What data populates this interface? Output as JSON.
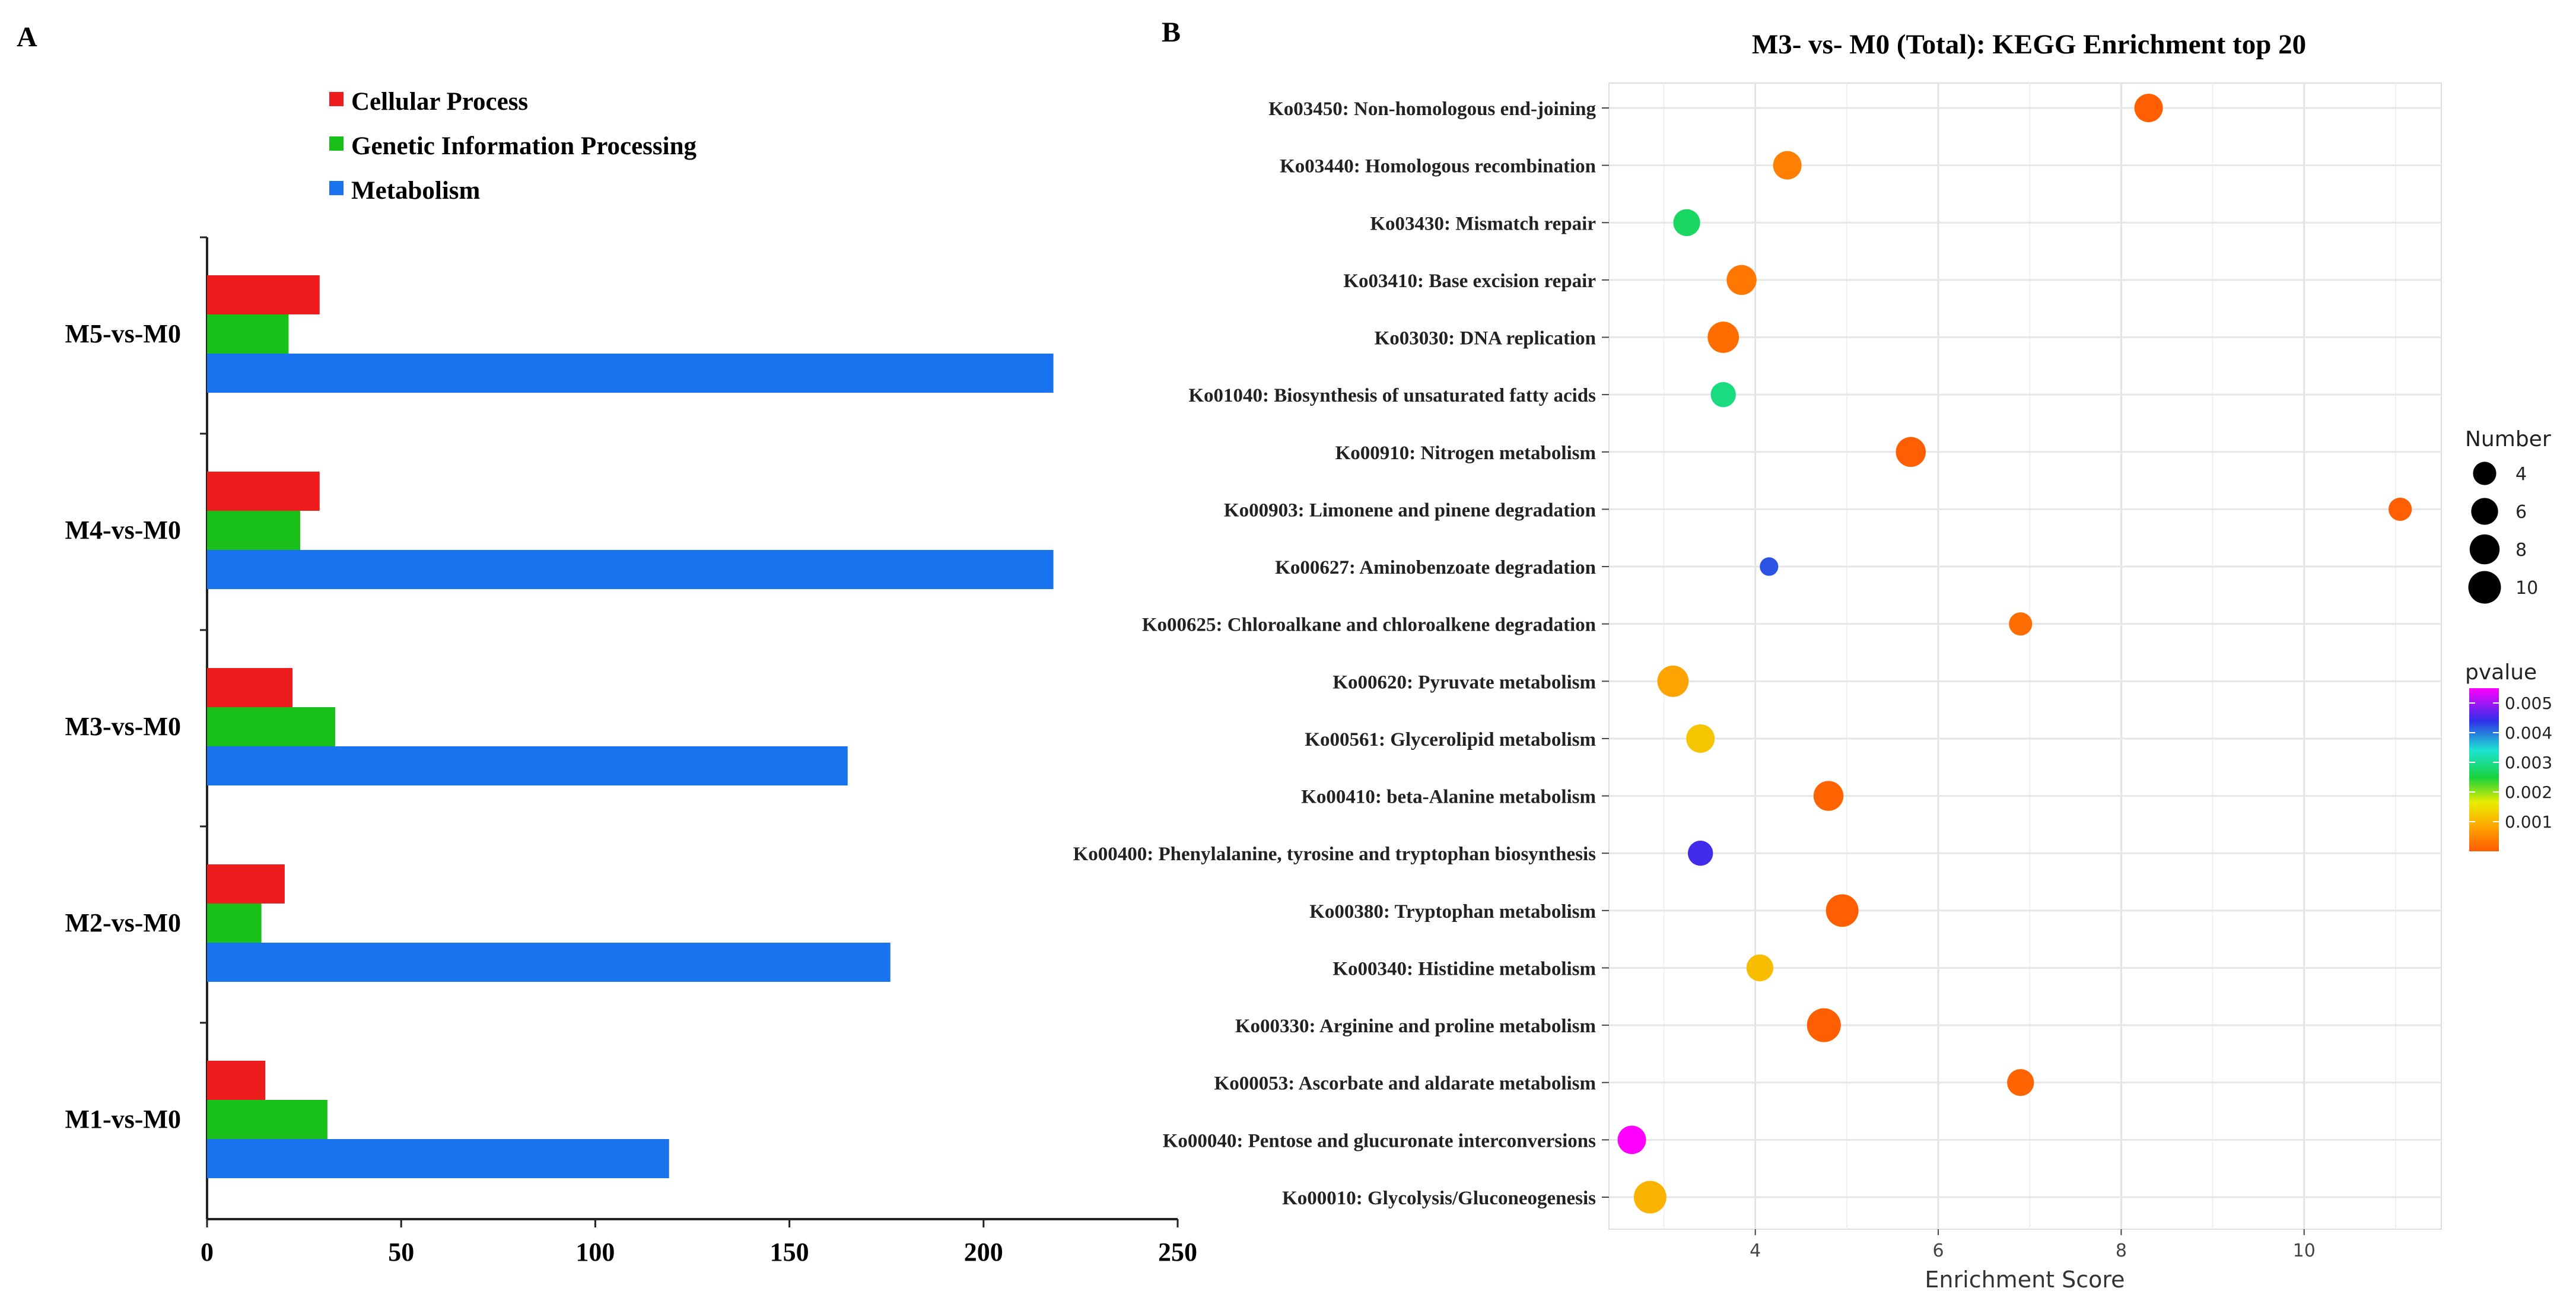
{
  "panel_labels": {
    "a": "A",
    "b": "B"
  },
  "chart_data": [
    {
      "type": "bar",
      "orientation": "horizontal",
      "title": "",
      "categories": [
        "M5-vs-M0",
        "M4-vs-M0",
        "M3-vs-M0",
        "M2-vs-M0",
        "M1-vs-M0"
      ],
      "series": [
        {
          "name": "Cellular Process",
          "color": "#ee1c1c",
          "values": [
            29,
            29,
            22,
            20,
            15
          ]
        },
        {
          "name": "Genetic Information Processing",
          "color": "#19c019",
          "values": [
            21,
            24,
            33,
            14,
            31
          ]
        },
        {
          "name": "Metabolism",
          "color": "#1a73ee",
          "values": [
            218,
            218,
            165,
            176,
            119
          ]
        }
      ],
      "xlim": [
        0,
        250
      ],
      "xticks": [
        "0",
        "50",
        "100",
        "150",
        "200",
        "250"
      ],
      "legend_position": "top"
    },
    {
      "type": "scatter",
      "title": "M3- vs- M0 (Total):  KEGG Enrichment top 20",
      "xlabel": "Enrichment Score",
      "xlim": [
        2.4,
        11.5
      ],
      "xticks": [
        "4",
        "6",
        "8",
        "10"
      ],
      "points": [
        {
          "label": "Ko03450: Non-homologous end-joining",
          "x": 8.3,
          "number": 7,
          "pvalue": 5e-05
        },
        {
          "label": "Ko03440: Homologous recombination",
          "x": 4.35,
          "number": 7,
          "pvalue": 0.0004
        },
        {
          "label": "Ko03430: Mismatch repair",
          "x": 3.25,
          "number": 6,
          "pvalue": 0.0027
        },
        {
          "label": "Ko03410: Base excision repair",
          "x": 3.85,
          "number": 8,
          "pvalue": 0.0003
        },
        {
          "label": "Ko03030: DNA replication",
          "x": 3.65,
          "number": 9,
          "pvalue": 0.0002
        },
        {
          "label": "Ko01040: Biosynthesis of unsaturated fatty acids",
          "x": 3.65,
          "number": 5,
          "pvalue": 0.0029
        },
        {
          "label": "Ko00910: Nitrogen metabolism",
          "x": 5.7,
          "number": 8,
          "pvalue": 5e-05
        },
        {
          "label": "Ko00903: Limonene and pinene degradation",
          "x": 11.05,
          "number": 4,
          "pvalue": 5e-05
        },
        {
          "label": "Ko00627: Aminobenzoate degradation",
          "x": 4.15,
          "number": 2,
          "pvalue": 0.0042
        },
        {
          "label": "Ko00625: Chloroalkane and chloroalkene degradation",
          "x": 6.9,
          "number": 4,
          "pvalue": 0.0002
        },
        {
          "label": "Ko00620: Pyruvate metabolism",
          "x": 3.1,
          "number": 9,
          "pvalue": 0.0008
        },
        {
          "label": "Ko00561: Glycerolipid metabolism",
          "x": 3.4,
          "number": 7,
          "pvalue": 0.0012
        },
        {
          "label": "Ko00410: beta-Alanine metabolism",
          "x": 4.8,
          "number": 8,
          "pvalue": 0.0001
        },
        {
          "label": "Ko00400: Phenylalanine, tyrosine and tryptophan biosynthesis",
          "x": 3.4,
          "number": 5,
          "pvalue": 0.0045
        },
        {
          "label": "Ko00380: Tryptophan metabolism",
          "x": 4.95,
          "number": 10,
          "pvalue": 5e-05
        },
        {
          "label": "Ko00340: Histidine metabolism",
          "x": 4.05,
          "number": 6,
          "pvalue": 0.0011
        },
        {
          "label": "Ko00330: Arginine and proline metabolism",
          "x": 4.75,
          "number": 11,
          "pvalue": 5e-05
        },
        {
          "label": "Ko00053: Ascorbate and aldarate metabolism",
          "x": 6.9,
          "number": 6,
          "pvalue": 0.0001
        },
        {
          "label": "Ko00040: Pentose and glucuronate interconversions",
          "x": 2.65,
          "number": 7,
          "pvalue": 0.0055
        },
        {
          "label": "Ko00010: Glycolysis/Gluconeogenesis",
          "x": 2.85,
          "number": 10,
          "pvalue": 0.001
        }
      ],
      "size_legend": {
        "title": "Number",
        "values": [
          "4",
          "6",
          "8",
          "10"
        ]
      },
      "color_legend": {
        "title": "pvalue",
        "ticks": [
          "0.005",
          "0.004",
          "0.003",
          "0.002",
          "0.001"
        ],
        "range": [
          0,
          0.0055
        ]
      },
      "grid": true
    }
  ]
}
